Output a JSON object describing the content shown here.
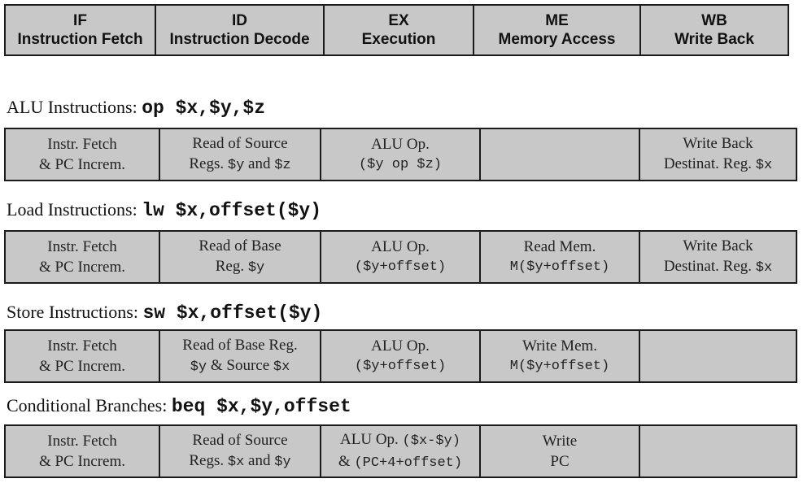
{
  "stages": [
    {
      "abbr": "IF",
      "name": "Instruction Fetch"
    },
    {
      "abbr": "ID",
      "name": "Instruction Decode"
    },
    {
      "abbr": "EX",
      "name": "Execution"
    },
    {
      "abbr": "ME",
      "name": "Memory Access"
    },
    {
      "abbr": "WB",
      "name": "Write Back"
    }
  ],
  "sections": {
    "alu": {
      "title": "ALU Instructions:",
      "syntax": "op $x,$y,$z",
      "cells": {
        "if_line1": "Instr. Fetch",
        "if_line2": "& PC Increm.",
        "id_line1": "Read of Source",
        "id_line2_pre": "Regs. ",
        "id_line2_a": "$y",
        "id_line2_mid": " and ",
        "id_line2_b": "$z",
        "ex_line1": "ALU Op.",
        "ex_line2": "($y op $z)",
        "wb_line1": "Write Back",
        "wb_line2_pre": "Destinat. Reg. ",
        "wb_line2_reg": "$x"
      }
    },
    "load": {
      "title": "Load Instructions:",
      "syntax": "lw $x,offset($y)",
      "cells": {
        "if_line1": "Instr. Fetch",
        "if_line2": "& PC Increm.",
        "id_line1": "Read of Base",
        "id_line2_pre": "Reg. ",
        "id_line2_reg": "$y",
        "ex_line1": "ALU Op.",
        "ex_line2": "($y+offset)",
        "me_line1": "Read Mem.",
        "me_line2": "M($y+offset)",
        "wb_line1": "Write Back",
        "wb_line2_pre": "Destinat. Reg. ",
        "wb_line2_reg": "$x"
      }
    },
    "store": {
      "title": "Store Instructions:",
      "syntax": "sw $x,offset($y)",
      "cells": {
        "if_line1": "Instr. Fetch",
        "if_line2": "& PC Increm.",
        "id_line1": "Read of Base  Reg.",
        "id_line2_a": "$y",
        "id_line2_mid": " & Source ",
        "id_line2_b": "$x",
        "ex_line1": "ALU Op.",
        "ex_line2": "($y+offset)",
        "me_line1": "Write Mem.",
        "me_line2": "M($y+offset)"
      }
    },
    "branch": {
      "title": "Conditional Branches:",
      "syntax": "beq $x,$y,offset",
      "cells": {
        "if_line1": "Instr. Fetch",
        "if_line2": "& PC Increm.",
        "id_line1": "Read of Source",
        "id_line2_pre": "Regs. ",
        "id_line2_a": "$x",
        "id_line2_mid": " and ",
        "id_line2_b": "$y",
        "ex_line1_pre": "ALU Op. ",
        "ex_line1_mono": "($x-$y)",
        "ex_line2_pre": "& ",
        "ex_line2_mono": "(PC+4+offset)",
        "me_line1": "Write",
        "me_line2": "PC"
      }
    }
  }
}
